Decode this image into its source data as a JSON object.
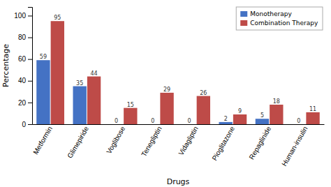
{
  "chart_data": {
    "type": "bar",
    "categories": [
      "Metformin",
      "Glimepiride",
      "Voglibose",
      "Tenegliptin",
      "Vidagliptin",
      "Pioglitazone",
      "Repaglinide",
      "Human-insulin"
    ],
    "series": [
      {
        "name": "Monotherapy",
        "color": "#4472C4",
        "values": [
          59,
          35,
          0,
          0,
          0,
          2,
          5,
          0
        ]
      },
      {
        "name": "Combination Therapy",
        "color": "#BE4B48",
        "values": [
          95,
          44,
          15,
          29,
          26,
          9,
          18,
          11
        ]
      }
    ],
    "xlabel": "Drugs",
    "ylabel": "Percentage",
    "ylim": [
      0,
      108
    ],
    "yticks": [
      0,
      20,
      40,
      60,
      80,
      100
    ],
    "grid": false,
    "legend": "top-right",
    "data_labels": true
  }
}
